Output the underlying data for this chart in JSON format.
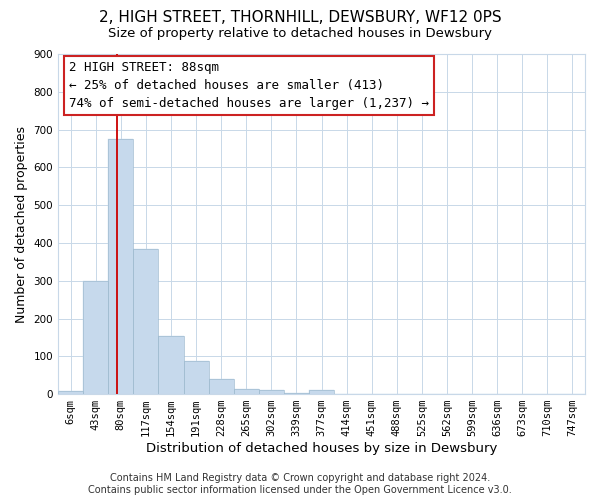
{
  "title": "2, HIGH STREET, THORNHILL, DEWSBURY, WF12 0PS",
  "subtitle": "Size of property relative to detached houses in Dewsbury",
  "bar_labels": [
    "6sqm",
    "43sqm",
    "80sqm",
    "117sqm",
    "154sqm",
    "191sqm",
    "228sqm",
    "265sqm",
    "302sqm",
    "339sqm",
    "377sqm",
    "414sqm",
    "451sqm",
    "488sqm",
    "525sqm",
    "562sqm",
    "599sqm",
    "636sqm",
    "673sqm",
    "710sqm",
    "747sqm"
  ],
  "bar_values": [
    8,
    298,
    675,
    383,
    155,
    88,
    40,
    14,
    11,
    4,
    10,
    0,
    0,
    0,
    0,
    0,
    0,
    0,
    0,
    0,
    0
  ],
  "bar_color": "#c6d9ec",
  "vline_bar_index": 2,
  "vline_color": "#cc0000",
  "xlabel": "Distribution of detached houses by size in Dewsbury",
  "ylabel": "Number of detached properties",
  "ylim": [
    0,
    900
  ],
  "yticks": [
    0,
    100,
    200,
    300,
    400,
    500,
    600,
    700,
    800,
    900
  ],
  "annotation_title": "2 HIGH STREET: 88sqm",
  "annotation_line1": "← 25% of detached houses are smaller (413)",
  "annotation_line2": "74% of semi-detached houses are larger (1,237) →",
  "footer_line1": "Contains HM Land Registry data © Crown copyright and database right 2024.",
  "footer_line2": "Contains public sector information licensed under the Open Government Licence v3.0.",
  "bg_color": "#ffffff",
  "grid_color": "#c8d8e8",
  "title_fontsize": 11,
  "subtitle_fontsize": 9.5,
  "xlabel_fontsize": 9.5,
  "ylabel_fontsize": 9,
  "tick_fontsize": 7.5,
  "annotation_fontsize": 9,
  "footer_fontsize": 7
}
